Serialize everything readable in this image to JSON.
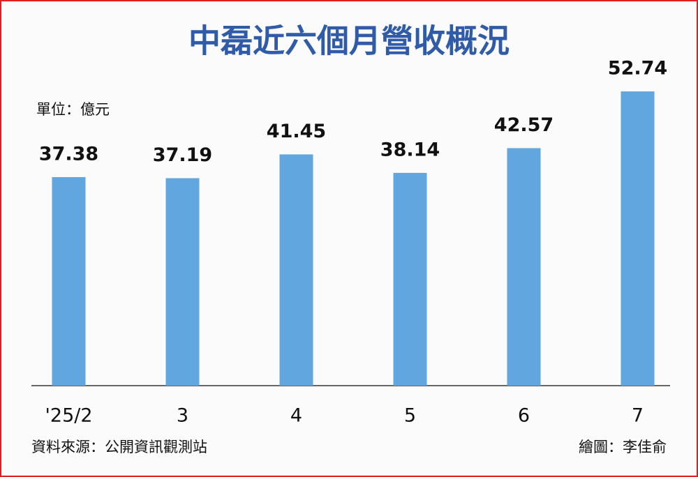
{
  "chart_data": {
    "type": "bar",
    "title": "中磊近六個月營收概況",
    "unit": "單位：億元",
    "source": "資料來源：公開資訊觀測站",
    "credit": "繪圖：李佳俞",
    "categories": [
      "'25/2",
      "3",
      "4",
      "5",
      "6",
      "7"
    ],
    "values": [
      37.38,
      37.19,
      41.45,
      38.14,
      42.57,
      52.74
    ],
    "color": "#62a6e0",
    "ylim": [
      0,
      55
    ]
  }
}
